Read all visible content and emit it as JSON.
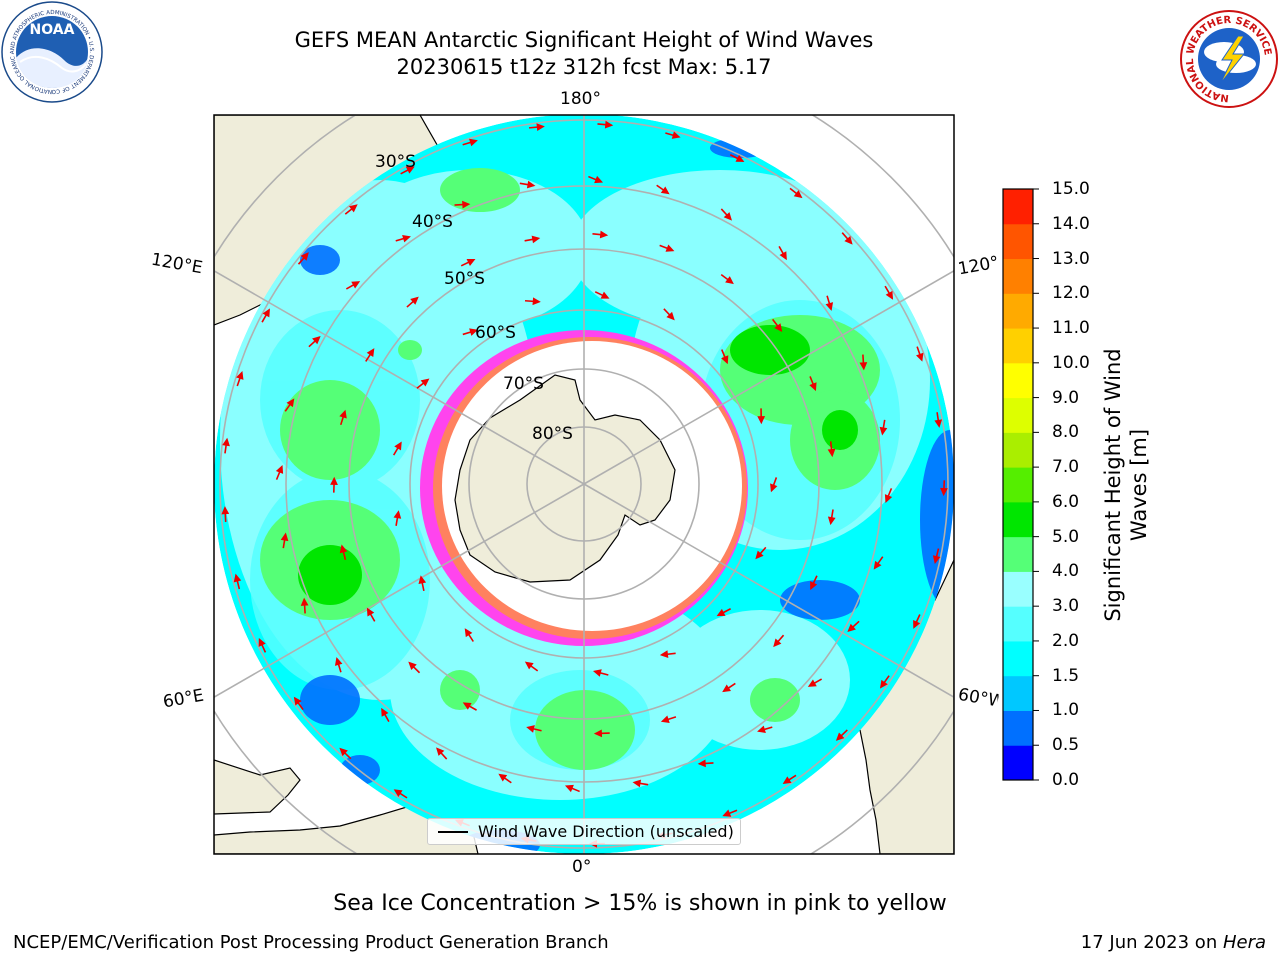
{
  "title": {
    "line1": "GEFS MEAN Antarctic Significant Height of Wind Waves",
    "line2": "20230615 t12z 312h fcst   Max: 5.17"
  },
  "map": {
    "projection": "South Polar Stereographic",
    "longitude_labels": {
      "top": "180°",
      "bottom": "0°",
      "left_upper": "120°E",
      "left_lower": "60°E",
      "right_upper": "120°",
      "right_lower": "60°W"
    },
    "latitude_labels": [
      "30°S",
      "40°S",
      "50°S",
      "60°S",
      "70°S",
      "80°S"
    ],
    "legend_label": "Wind Wave Direction (unscaled)",
    "sea_ice_note": "Sea Ice Concentration > 15% is shown in pink to yellow"
  },
  "colorbar": {
    "label": "Significant Height of Wind Waves [m]",
    "ticks": [
      "0.0",
      "0.5",
      "1.0",
      "1.5",
      "2.0",
      "3.0",
      "4.0",
      "5.0",
      "6.0",
      "7.0",
      "8.0",
      "9.0",
      "10.0",
      "11.0",
      "12.0",
      "13.0",
      "14.0",
      "15.0"
    ],
    "colors": [
      "#0000ff",
      "#0070ff",
      "#00c8ff",
      "#00ffff",
      "#55ffff",
      "#99ffff",
      "#55ff77",
      "#00e600",
      "#55ee00",
      "#aaee00",
      "#ddff00",
      "#ffff00",
      "#ffd000",
      "#ffaa00",
      "#ff8000",
      "#ff5500",
      "#ff2000"
    ]
  },
  "logos": {
    "noaa_text": "NOAA",
    "noaa_ring": "NATIONAL OCEANIC AND ATMOSPHERIC ADMINISTRATION • U.S. DEPARTMENT OF COMMERCE •",
    "nws_ring": "NATIONAL WEATHER SERVICE"
  },
  "footer": {
    "left": "NCEP/EMC/Verification Post Processing Product Generation Branch",
    "right_prefix": "17 Jun 2023 on ",
    "right_host": "Hera"
  }
}
